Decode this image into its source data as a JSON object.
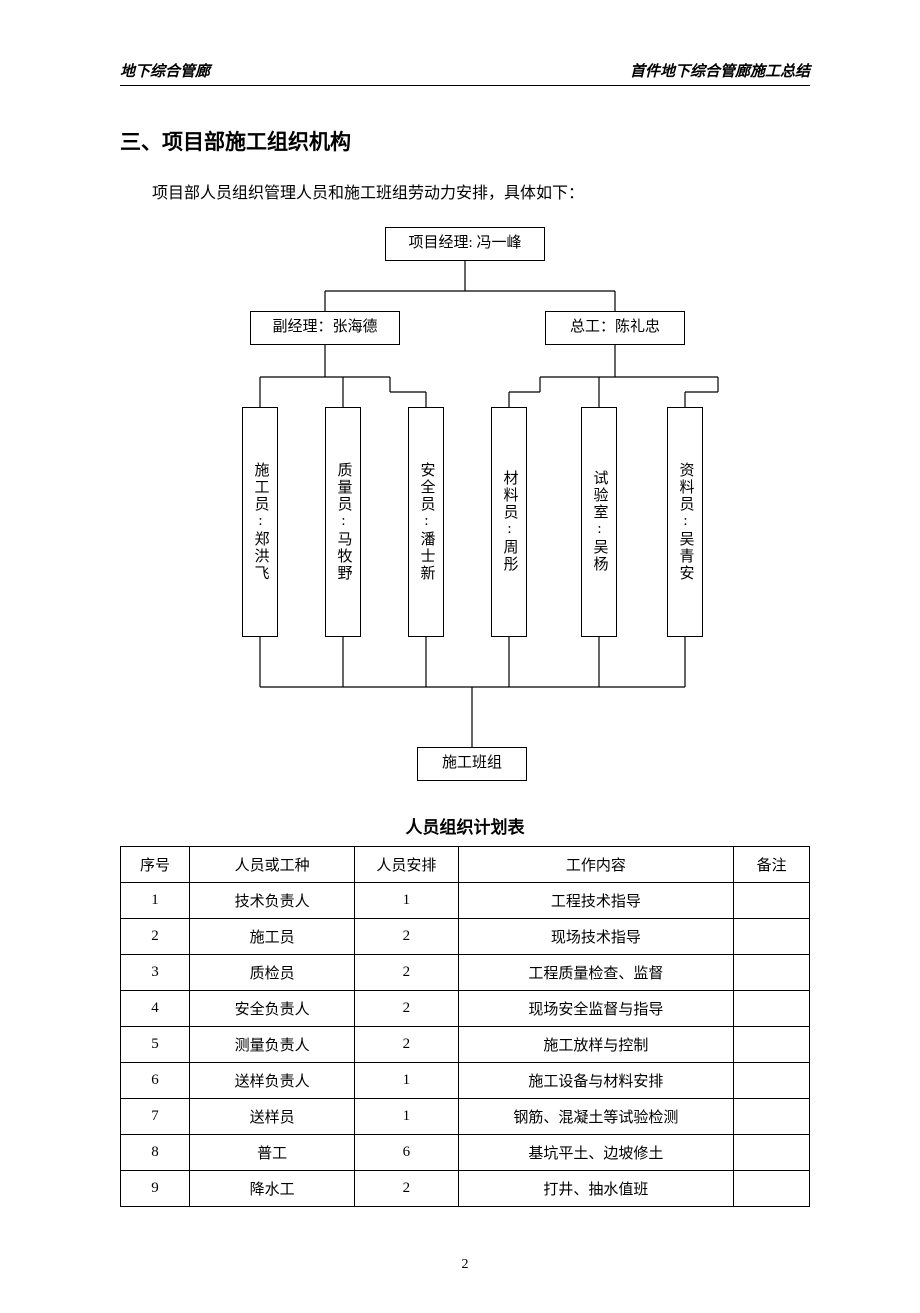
{
  "header": {
    "left": "地下综合管廊",
    "right": "首件地下综合管廊施工总结"
  },
  "section": {
    "title": "三、项目部施工组织机构",
    "intro": "项目部人员组织管理人员和施工班组劳动力安排，具体如下："
  },
  "org": {
    "top": "项目经理: 冯一峰",
    "mid_left": "副经理：张海德",
    "mid_right": "总工：陈礼忠",
    "staff": [
      "施工员:郑洪飞",
      "质量员:马牧野",
      "安全员:潘士新",
      "材料员:周彤",
      "试验室:吴杨",
      "资料员:吴青安"
    ],
    "bottom": "施工班组",
    "line_color": "#000000"
  },
  "table": {
    "title": "人员组织计划表",
    "columns": [
      "序号",
      "人员或工种",
      "人员安排",
      "工作内容",
      "备注"
    ],
    "col_widths": [
      "10%",
      "24%",
      "15%",
      "40%",
      "11%"
    ],
    "rows": [
      [
        "1",
        "技术负责人",
        "1",
        "工程技术指导",
        ""
      ],
      [
        "2",
        "施工员",
        "2",
        "现场技术指导",
        ""
      ],
      [
        "3",
        "质检员",
        "2",
        "工程质量检查、监督",
        ""
      ],
      [
        "4",
        "安全负责人",
        "2",
        "现场安全监督与指导",
        ""
      ],
      [
        "5",
        "测量负责人",
        "2",
        "施工放样与控制",
        ""
      ],
      [
        "6",
        "送样负责人",
        "1",
        "施工设备与材料安排",
        ""
      ],
      [
        "7",
        "送样员",
        "1",
        "钢筋、混凝土等试验检测",
        ""
      ],
      [
        "8",
        "普工",
        "6",
        "基坑平土、边坡修土",
        ""
      ],
      [
        "9",
        "降水工",
        "2",
        "打井、抽水值班",
        ""
      ]
    ]
  },
  "page_number": "2"
}
